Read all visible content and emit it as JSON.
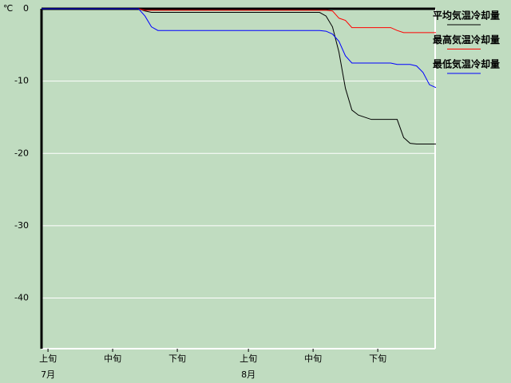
{
  "chart_data": {
    "type": "line",
    "unit_label": "℃",
    "x": [
      0,
      15,
      16,
      17,
      18,
      43,
      44,
      45,
      46,
      47,
      48,
      49,
      50,
      51,
      52,
      53,
      54,
      55,
      56,
      57,
      58,
      59,
      60,
      61
    ],
    "xlim": [
      0,
      61
    ],
    "xticks": [
      {
        "value": 1,
        "label": "上旬"
      },
      {
        "value": 11,
        "label": "中旬"
      },
      {
        "value": 21,
        "label": "下旬"
      },
      {
        "value": 32,
        "label": "上旬"
      },
      {
        "value": 42,
        "label": "中旬"
      },
      {
        "value": 52,
        "label": "下旬"
      }
    ],
    "month_labels": [
      {
        "value": 1,
        "label": "7月"
      },
      {
        "value": 32,
        "label": "8月"
      }
    ],
    "ylim": [
      -47,
      0
    ],
    "yticks": [
      0,
      -10,
      -20,
      -30,
      -40
    ],
    "grid": true,
    "series": [
      {
        "name": "平均気温冷却量",
        "color": "#000000",
        "values": [
          0,
          0,
          -0.3,
          -0.5,
          -0.5,
          -0.5,
          -1,
          -2.5,
          -6,
          -11,
          -14,
          -14.7,
          -15,
          -15.3,
          -15.3,
          -15.3,
          -15.3,
          -15.3,
          -17.8,
          -18.6,
          -18.7,
          -18.7,
          -18.7,
          -18.7
        ]
      },
      {
        "name": "最高気温冷却量",
        "color": "#ff0000",
        "values": [
          0,
          0,
          -0.2,
          -0.2,
          -0.2,
          -0.2,
          -0.2,
          -0.3,
          -1.3,
          -1.6,
          -2.6,
          -2.6,
          -2.6,
          -2.6,
          -2.6,
          -2.6,
          -2.6,
          -3,
          -3.3,
          -3.3,
          -3.3,
          -3.3,
          -3.3,
          -3.3
        ]
      },
      {
        "name": "最低気温冷却量",
        "color": "#0000ff",
        "values": [
          0,
          0,
          -1,
          -2.5,
          -3,
          -3,
          -3.1,
          -3.5,
          -4.5,
          -6.5,
          -7.5,
          -7.5,
          -7.5,
          -7.5,
          -7.5,
          -7.5,
          -7.5,
          -7.7,
          -7.7,
          -7.7,
          -7.9,
          -8.8,
          -10.5,
          -10.9
        ]
      }
    ]
  }
}
